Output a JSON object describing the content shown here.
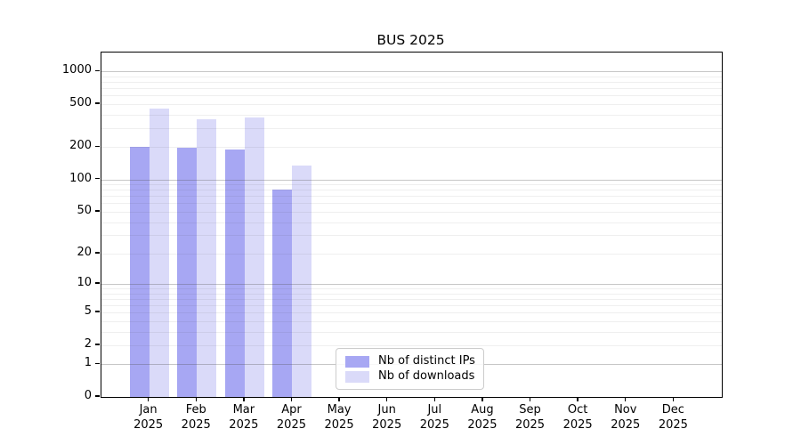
{
  "chart_data": {
    "type": "bar",
    "title": "BUS 2025",
    "scale": "log1p",
    "grid": "horizontal",
    "legend_position": "bottom-center",
    "year": "2025",
    "categories": [
      "Jan",
      "Feb",
      "Mar",
      "Apr",
      "May",
      "Jun",
      "Jul",
      "Aug",
      "Sep",
      "Oct",
      "Nov",
      "Dec"
    ],
    "series": [
      {
        "name": "Nb of distinct IPs",
        "color": "#a7a7f3",
        "values": [
          200,
          197,
          192,
          80,
          null,
          null,
          null,
          null,
          null,
          null,
          null,
          null
        ]
      },
      {
        "name": "Nb of downloads",
        "color": "#dadaf9",
        "values": [
          452,
          365,
          380,
          134,
          null,
          null,
          null,
          null,
          null,
          null,
          null,
          null
        ]
      }
    ],
    "y_ticks": [
      0,
      1,
      2,
      5,
      10,
      20,
      50,
      100,
      200,
      500,
      1000
    ],
    "major_gridlines": [
      1,
      10,
      100,
      1000
    ],
    "minor_gridlines": [
      2,
      3,
      4,
      5,
      6,
      7,
      8,
      9,
      20,
      30,
      40,
      50,
      60,
      70,
      80,
      90,
      200,
      300,
      400,
      500,
      600,
      700,
      800,
      900
    ],
    "ylim": [
      0,
      1500
    ],
    "xlabel": "",
    "ylabel": ""
  },
  "colors": {
    "axis": "#000000",
    "major_grid": "#c4c4c4",
    "minor_grid": "#ececec",
    "legend_border": "#cccccc",
    "background": "#ffffff"
  }
}
